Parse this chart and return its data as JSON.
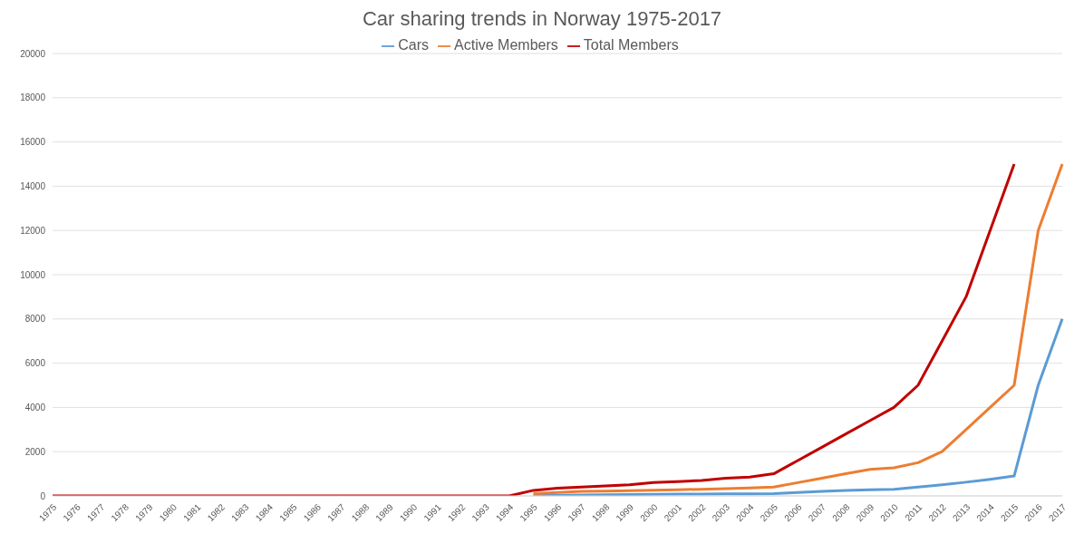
{
  "chart_data": {
    "type": "line",
    "title": "Car sharing trends in Norway 1975-2017",
    "categories": [
      "1975",
      "1976",
      "1977",
      "1978",
      "1979",
      "1980",
      "1981",
      "1982",
      "1983",
      "1984",
      "1985",
      "1986",
      "1987",
      "1988",
      "1989",
      "1990",
      "1991",
      "1992",
      "1993",
      "1994",
      "1995",
      "1996",
      "1997",
      "1998",
      "1999",
      "2000",
      "2001",
      "2002",
      "2003",
      "2004",
      "2005",
      "2006",
      "2007",
      "2008",
      "2009",
      "2010",
      "2011",
      "2012",
      "2013",
      "2014",
      "2015",
      "2016",
      "2017"
    ],
    "series": [
      {
        "name": "Cars",
        "color": "#5b9bd5",
        "values": [
          null,
          null,
          null,
          null,
          null,
          null,
          null,
          null,
          null,
          null,
          null,
          null,
          null,
          null,
          null,
          null,
          null,
          null,
          null,
          null,
          20,
          30,
          40,
          50,
          60,
          70,
          80,
          80,
          90,
          90,
          100,
          150,
          200,
          250,
          280,
          300,
          400,
          500,
          620,
          750,
          900,
          5000,
          8000
        ]
      },
      {
        "name": "Active Members",
        "color": "#ed7d31",
        "values": [
          null,
          null,
          null,
          null,
          null,
          null,
          null,
          null,
          null,
          null,
          null,
          null,
          null,
          null,
          null,
          null,
          null,
          null,
          null,
          null,
          100,
          150,
          200,
          220,
          240,
          260,
          280,
          300,
          330,
          360,
          400,
          600,
          800,
          1000,
          1200,
          1270,
          1500,
          2000,
          3000,
          4000,
          5000,
          12000,
          15000
        ]
      },
      {
        "name": "Total Members",
        "color": "#c00000",
        "values": [
          0,
          0,
          0,
          0,
          0,
          0,
          0,
          0,
          0,
          0,
          0,
          0,
          0,
          0,
          0,
          0,
          0,
          0,
          0,
          0,
          250,
          350,
          400,
          450,
          500,
          600,
          650,
          700,
          800,
          850,
          1000,
          1600,
          2200,
          2800,
          3400,
          4000,
          5000,
          7000,
          9000,
          12000,
          15000,
          null,
          null
        ]
      }
    ],
    "ylim": [
      0,
      20000
    ],
    "yticks": [
      0,
      2000,
      4000,
      6000,
      8000,
      10000,
      12000,
      14000,
      16000,
      18000,
      20000
    ],
    "grid": "y",
    "legend": "top",
    "marker": "none",
    "line_style": "solid"
  }
}
